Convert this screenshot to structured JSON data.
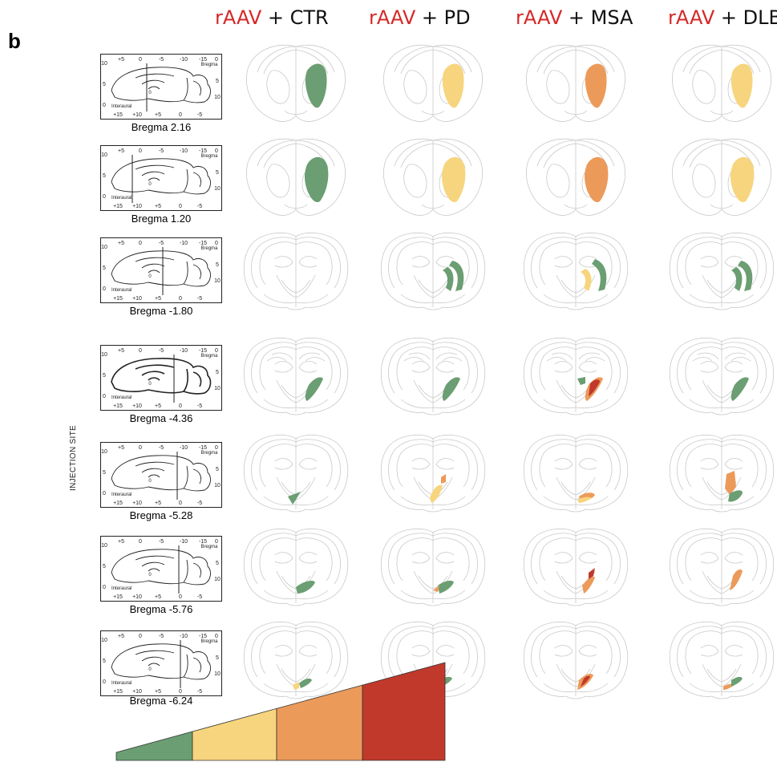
{
  "panel_letter": "b",
  "columns": [
    {
      "prefix": "rAAV",
      "suffix": " + CTR"
    },
    {
      "prefix": "rAAV",
      "suffix": " + PD"
    },
    {
      "prefix": "rAAV",
      "suffix": " + MSA"
    },
    {
      "prefix": "rAAV",
      "suffix": " + DLB"
    }
  ],
  "side_label": "INJECTION SITE",
  "rows": [
    {
      "bregma": "Bregma 2.16"
    },
    {
      "bregma": "Bregma 1.20"
    },
    {
      "bregma": "Bregma -1.80"
    },
    {
      "bregma": "Bregma -4.36"
    },
    {
      "bregma": "Bregma -5.28"
    },
    {
      "bregma": "Bregma -5.76"
    },
    {
      "bregma": "Bregma -6.24"
    }
  ],
  "atlas_labels": {
    "top": [
      "+5",
      "0",
      "-5",
      "-10",
      "-15",
      "0"
    ],
    "right": [
      "5",
      "10"
    ],
    "bottom": [
      "+15",
      "+10",
      "+5",
      "0",
      "-5"
    ],
    "left": [
      "10",
      "5",
      "0"
    ],
    "bregma_word": "Bregma",
    "interaural_word": "Interaural",
    "zero_mark": "0"
  },
  "colors": {
    "green": "#6b9e72",
    "yellow": "#f7d57e",
    "orange": "#ec9a5a",
    "red": "#c0392b",
    "outline": "#c9c9c9",
    "title_red": "#d62828"
  },
  "gradient_colors": [
    "#6b9e72",
    "#f7d57e",
    "#ec9a5a",
    "#c0392b"
  ]
}
